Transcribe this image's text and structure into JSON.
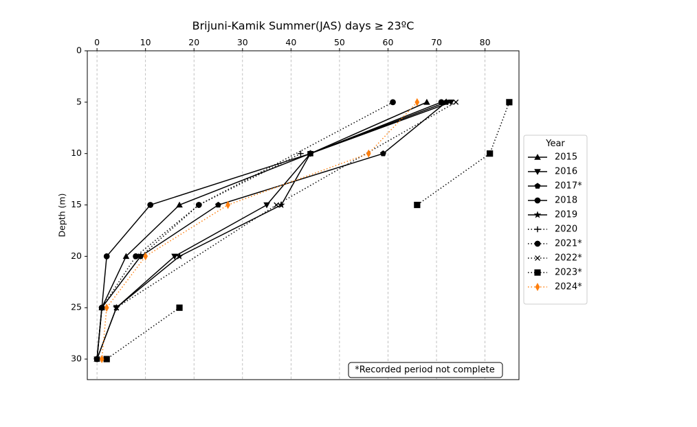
{
  "chart_data": {
    "type": "line",
    "title": "Brijuni-Kamik Summer(JAS) days ≥ 23ºC",
    "xlabel": "",
    "ylabel": "Depth (m)",
    "xlim": [
      -2,
      87
    ],
    "ylim": [
      32,
      0
    ],
    "x_ticks": [
      0,
      10,
      20,
      30,
      40,
      50,
      60,
      70,
      80
    ],
    "y_ticks": [
      0,
      5,
      10,
      15,
      20,
      25,
      30
    ],
    "x_axis_position": "top",
    "y_inverted": true,
    "grid": "vertical dashed",
    "legend": {
      "title": "Year",
      "placement": "outside-right"
    },
    "annotation": "*Recorded period not complete",
    "series": [
      {
        "name": "2015",
        "marker": "triangle-up",
        "style": "solid",
        "color": "#000000",
        "points": [
          {
            "x": 68,
            "y": 5
          },
          {
            "x": 44,
            "y": 10
          },
          {
            "x": 17,
            "y": 15
          },
          {
            "x": 6,
            "y": 20
          },
          {
            "x": 1,
            "y": 25
          },
          {
            "x": 0,
            "y": 30
          }
        ]
      },
      {
        "name": "2016",
        "marker": "triangle-down",
        "style": "solid",
        "color": "#000000",
        "points": [
          {
            "x": 73,
            "y": 5
          },
          {
            "x": 44,
            "y": 10
          },
          {
            "x": 35,
            "y": 15
          },
          {
            "x": 16,
            "y": 20
          },
          {
            "x": 4,
            "y": 25
          },
          {
            "x": 0,
            "y": 30
          }
        ]
      },
      {
        "name": "2017*",
        "marker": "pentagon",
        "style": "solid",
        "color": "#000000",
        "points": [
          {
            "x": 72,
            "y": 5
          },
          {
            "x": 59,
            "y": 10
          },
          {
            "x": 25,
            "y": 15
          },
          {
            "x": 9,
            "y": 20
          },
          {
            "x": 1,
            "y": 25
          },
          {
            "x": 0,
            "y": 30
          }
        ]
      },
      {
        "name": "2018",
        "marker": "circle",
        "style": "solid",
        "color": "#000000",
        "points": [
          {
            "x": 71,
            "y": 5
          },
          {
            "x": 44,
            "y": 10
          },
          {
            "x": 11,
            "y": 15
          },
          {
            "x": 2,
            "y": 20
          },
          {
            "x": 1,
            "y": 25
          },
          {
            "x": 0,
            "y": 30
          }
        ]
      },
      {
        "name": "2019",
        "marker": "star",
        "style": "solid",
        "color": "#000000",
        "points": [
          {
            "x": 72,
            "y": 5
          },
          {
            "x": 44,
            "y": 10
          },
          {
            "x": 38,
            "y": 15
          },
          {
            "x": 17,
            "y": 20
          },
          {
            "x": 4,
            "y": 25
          },
          {
            "x": 0,
            "y": 30
          }
        ]
      },
      {
        "name": "2020",
        "marker": "plus",
        "style": "dotted",
        "color": "#000000",
        "points": [
          {
            "x": 42,
            "y": 10
          },
          {
            "x": 21,
            "y": 15
          },
          {
            "x": 9,
            "y": 20
          },
          {
            "x": 1,
            "y": 25
          },
          {
            "x": 0,
            "y": 30
          }
        ]
      },
      {
        "name": "2021*",
        "marker": "circle",
        "style": "dotted",
        "color": "#000000",
        "points": [
          {
            "x": 61,
            "y": 5
          },
          {
            "x": 21,
            "y": 15
          },
          {
            "x": 8,
            "y": 20
          },
          {
            "x": 1,
            "y": 25
          },
          {
            "x": 0,
            "y": 30
          }
        ]
      },
      {
        "name": "2022*",
        "marker": "x",
        "style": "dotted",
        "color": "#000000",
        "points": [
          {
            "x": 74,
            "y": 5
          },
          {
            "x": 37,
            "y": 15
          },
          {
            "x": 4,
            "y": 25
          }
        ]
      },
      {
        "name": "2023*",
        "marker": "square",
        "style": "dotted",
        "color": "#000000",
        "segments": [
          [
            {
              "x": 85,
              "y": 5
            },
            {
              "x": 81,
              "y": 10
            },
            {
              "x": 66,
              "y": 15
            }
          ],
          [
            {
              "x": 17,
              "y": 25
            },
            {
              "x": 2,
              "y": 30
            }
          ]
        ]
      },
      {
        "name": "2024*",
        "marker": "thin-diamond",
        "style": "dotted",
        "color": "#ff7f0e",
        "points": [
          {
            "x": 66,
            "y": 5
          },
          {
            "x": 56,
            "y": 10
          },
          {
            "x": 27,
            "y": 15
          },
          {
            "x": 10,
            "y": 20
          },
          {
            "x": 2,
            "y": 25
          },
          {
            "x": 1,
            "y": 30
          }
        ]
      }
    ]
  }
}
